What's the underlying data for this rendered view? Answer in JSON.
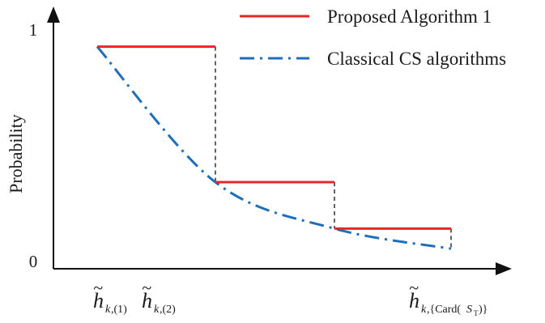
{
  "chart_data": {
    "type": "line",
    "title": "",
    "xlabel": "",
    "ylabel": "Probability",
    "yticks": [
      "0",
      "1"
    ],
    "ylim": [
      0,
      1
    ],
    "xticks": [
      {
        "base": "h",
        "sub": "k,(1)"
      },
      {
        "base": "h",
        "sub": "k,(2)"
      },
      {
        "base": "h",
        "sub": "k,{Card(S_T)}"
      }
    ],
    "x_positions": [
      1,
      2,
      3,
      4
    ],
    "series": [
      {
        "name": "Proposed Algorithm 1",
        "style": "solid step",
        "color": "#e8262a",
        "steps": [
          {
            "x0": 1,
            "x1": 2,
            "y": 0.885
          },
          {
            "x0": 2,
            "x1": 3,
            "y": 0.345
          },
          {
            "x0": 3,
            "x1": 4,
            "y": 0.16
          }
        ]
      },
      {
        "name": "Classical CS algorithms",
        "style": "dash-dot curve",
        "color": "#1f6fb8",
        "points": [
          [
            1,
            0.885
          ],
          [
            2,
            0.345
          ],
          [
            3,
            0.16
          ],
          [
            4,
            0.08
          ]
        ]
      }
    ],
    "connectors": "dashed vertical",
    "grid": false,
    "legend": "top-right"
  }
}
